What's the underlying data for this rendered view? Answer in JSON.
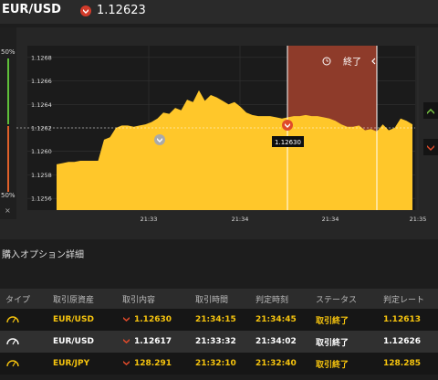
{
  "header": {
    "pair": "EUR/USD",
    "rate": "1.12623"
  },
  "side": {
    "pct_top": "50%",
    "pct_bottom": "50%",
    "collapse": "×"
  },
  "chart": {
    "y_ticks": [
      "1.1268",
      "1.1266",
      "1.1264",
      "1.1262",
      "1.1260",
      "1.1258",
      "1.1256"
    ],
    "x_ticks": [
      "21:33",
      "21:34",
      "21:34",
      "21:35"
    ],
    "end_label": "終了",
    "marker_label": "1.12630",
    "colors": {
      "area": "#ffc72a",
      "expiry_zone": "#8e3b2a"
    }
  },
  "chart_data": {
    "type": "area",
    "ylim": [
      1.1255,
      1.1269
    ],
    "reference_line": 1.1262,
    "series": [
      {
        "values": [
          1.12589,
          1.1259,
          1.12591,
          1.12591,
          1.12592,
          1.12592,
          1.12592,
          1.12592,
          1.1261,
          1.12612,
          1.1262,
          1.12622,
          1.12622,
          1.12621,
          1.12622,
          1.12623,
          1.12625,
          1.12628,
          1.12633,
          1.12632,
          1.12637,
          1.12635,
          1.12644,
          1.12642,
          1.12652,
          1.12643,
          1.12648,
          1.12646,
          1.12643,
          1.1264,
          1.12642,
          1.12638,
          1.12633,
          1.12631,
          1.1263,
          1.1263,
          1.1263,
          1.12629,
          1.12628,
          1.12629,
          1.1263,
          1.1263,
          1.12631,
          1.1263,
          1.1263,
          1.12629,
          1.12628,
          1.12626,
          1.12623,
          1.12621,
          1.12621,
          1.12622,
          1.12618,
          1.12619,
          1.12617,
          1.12623,
          1.12618,
          1.1262,
          1.12628,
          1.12626,
          1.12623
        ]
      }
    ]
  },
  "details": {
    "title": "購入オプション詳細",
    "headers": [
      "タイプ",
      "取引原資産",
      "取引内容",
      "取引時間",
      "判定時刻",
      "ステータス",
      "判定レート"
    ],
    "rows": [
      {
        "asset": "EUR/USD",
        "content": "1.12630",
        "time": "21:34:15",
        "judge": "21:34:45",
        "status": "取引終了",
        "rate": "1.12613"
      },
      {
        "asset": "EUR/USD",
        "content": "1.12617",
        "time": "21:33:32",
        "judge": "21:34:02",
        "status": "取引終了",
        "rate": "1.12626"
      },
      {
        "asset": "EUR/JPY",
        "content": "128.291",
        "time": "21:32:10",
        "judge": "21:32:40",
        "status": "取引終了",
        "rate": "128.285"
      }
    ]
  }
}
